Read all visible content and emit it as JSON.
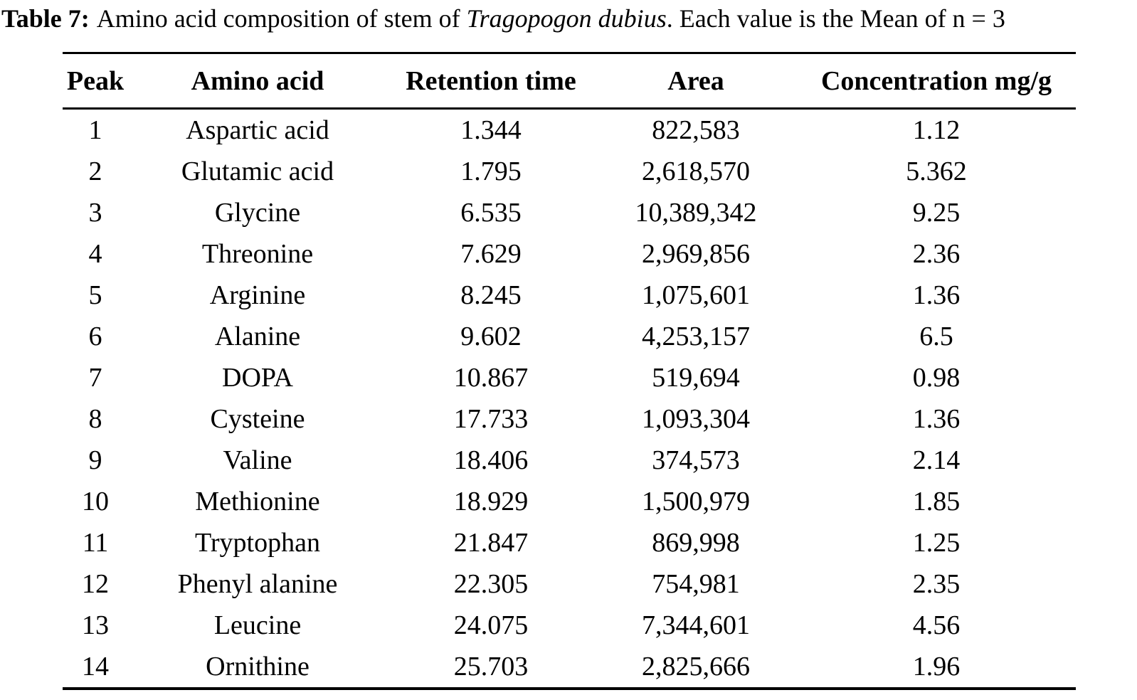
{
  "caption": {
    "label": "Table 7:",
    "text_before_italic": "Amino acid composition of stem of ",
    "species_italic": "Tragopogon dubius",
    "text_after_italic": ". Each value is the Mean of n = 3"
  },
  "table": {
    "columns": [
      "Peak",
      "Amino acid",
      "Retention time",
      "Area",
      "Concentration mg/g"
    ],
    "rows": [
      [
        "1",
        "Aspartic acid",
        "1.344",
        "822,583",
        "1.12"
      ],
      [
        "2",
        "Glutamic acid",
        "1.795",
        "2,618,570",
        "5.362"
      ],
      [
        "3",
        "Glycine",
        "6.535",
        "10,389,342",
        "9.25"
      ],
      [
        "4",
        "Threonine",
        "7.629",
        "2,969,856",
        "2.36"
      ],
      [
        "5",
        "Arginine",
        "8.245",
        "1,075,601",
        "1.36"
      ],
      [
        "6",
        "Alanine",
        "9.602",
        "4,253,157",
        "6.5"
      ],
      [
        "7",
        "DOPA",
        "10.867",
        "519,694",
        "0.98"
      ],
      [
        "8",
        "Cysteine",
        "17.733",
        "1,093,304",
        "1.36"
      ],
      [
        "9",
        "Valine",
        "18.406",
        "374,573",
        "2.14"
      ],
      [
        "10",
        "Methionine",
        "18.929",
        "1,500,979",
        "1.85"
      ],
      [
        "11",
        "Tryptophan",
        "21.847",
        "869,998",
        "1.25"
      ],
      [
        "12",
        "Phenyl alanine",
        "22.305",
        "754,981",
        "2.35"
      ],
      [
        "13",
        "Leucine",
        "24.075",
        "7,344,601",
        "4.56"
      ],
      [
        "14",
        "Ornithine",
        "25.703",
        "2,825,666",
        "1.96"
      ]
    ]
  },
  "chart_data": {
    "type": "table",
    "title": "Table 7: Amino acid composition of stem of Tragopogon dubius. Each value is the Mean of n = 3",
    "columns": [
      "Peak",
      "Amino acid",
      "Retention time",
      "Area",
      "Concentration mg/g"
    ],
    "rows": [
      [
        1,
        "Aspartic acid",
        1.344,
        822583,
        1.12
      ],
      [
        2,
        "Glutamic acid",
        1.795,
        2618570,
        5.362
      ],
      [
        3,
        "Glycine",
        6.535,
        10389342,
        9.25
      ],
      [
        4,
        "Threonine",
        7.629,
        2969856,
        2.36
      ],
      [
        5,
        "Arginine",
        8.245,
        1075601,
        1.36
      ],
      [
        6,
        "Alanine",
        9.602,
        4253157,
        6.5
      ],
      [
        7,
        "DOPA",
        10.867,
        519694,
        0.98
      ],
      [
        8,
        "Cysteine",
        17.733,
        1093304,
        1.36
      ],
      [
        9,
        "Valine",
        18.406,
        374573,
        2.14
      ],
      [
        10,
        "Methionine",
        18.929,
        1500979,
        1.85
      ],
      [
        11,
        "Tryptophan",
        21.847,
        869998,
        1.25
      ],
      [
        12,
        "Phenyl alanine",
        22.305,
        754981,
        2.35
      ],
      [
        13,
        "Leucine",
        24.075,
        7344601,
        4.56
      ],
      [
        14,
        "Ornithine",
        25.703,
        2825666,
        1.96
      ]
    ]
  }
}
